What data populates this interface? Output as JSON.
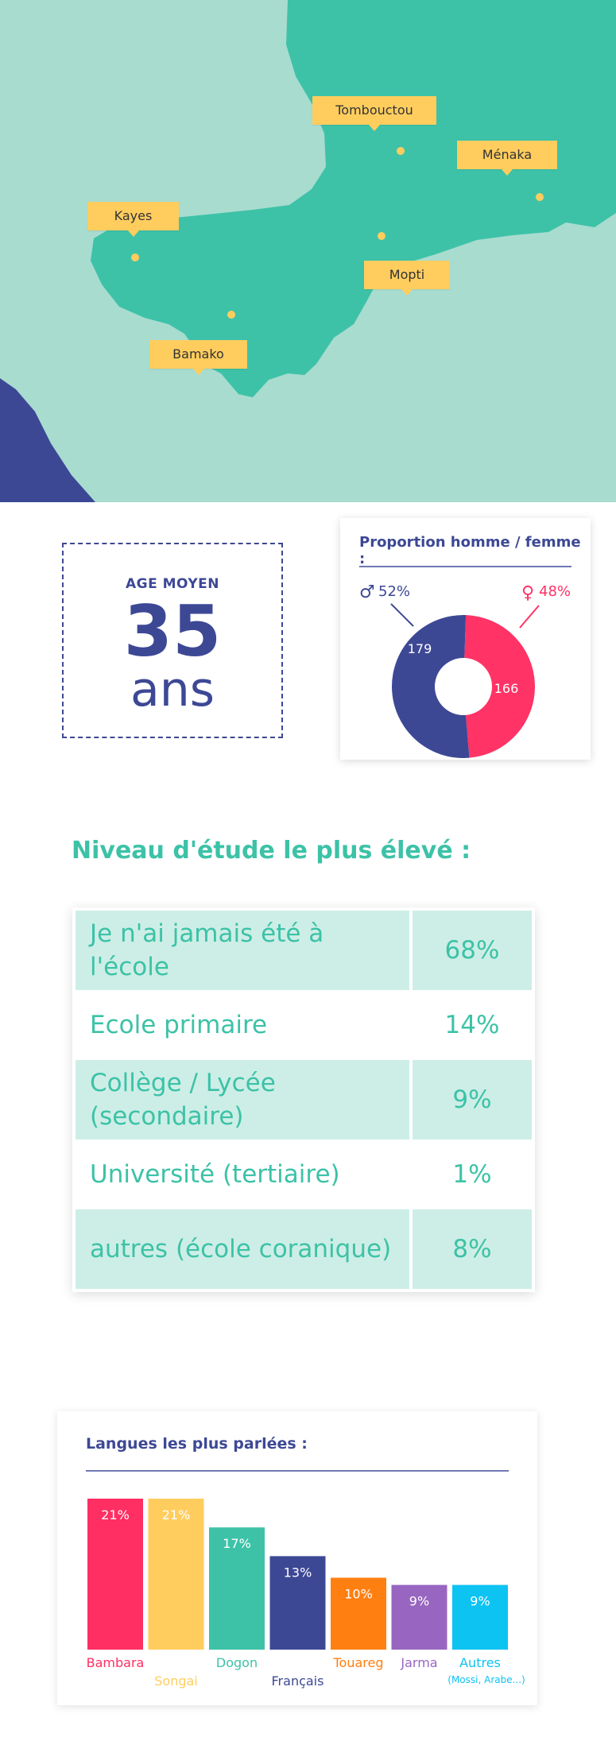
{
  "map": {
    "colors": {
      "water": "#a8dccf",
      "land": "#3dc2a8",
      "coast": "#3d4895",
      "label": "#ffcd5e"
    },
    "cities": [
      {
        "name": "Tombouctou"
      },
      {
        "name": "Ménaka"
      },
      {
        "name": "Kayes"
      },
      {
        "name": "Mopti"
      },
      {
        "name": "Bamako"
      }
    ]
  },
  "age": {
    "caption": "AGE MOYEN",
    "value": "35",
    "unit": "ans"
  },
  "gender": {
    "title": "Proportion homme / femme :",
    "male": {
      "symbol": "♂",
      "percent_label": "52%",
      "count_label": "179",
      "count": 179,
      "color": "#3d4895"
    },
    "female": {
      "symbol": "♀",
      "percent_label": "48%",
      "count_label": "166",
      "count": 166,
      "color": "#ff3366"
    }
  },
  "education": {
    "title": "Niveau d'étude le plus élevé :",
    "rows": [
      {
        "label": "Je n'ai jamais été à l'école",
        "value": "68%"
      },
      {
        "label": "Ecole primaire",
        "value": "14%"
      },
      {
        "label": "Collège / Lycée (secondaire)",
        "value": "9%"
      },
      {
        "label": "Université (tertiaire)",
        "value": "1%"
      },
      {
        "label": "autres (école coranique)",
        "value": "8%"
      }
    ]
  },
  "chart_data": {
    "type": "bar",
    "title": "Langues les plus parlées :",
    "categories": [
      "Bambara",
      "Songai",
      "Dogon",
      "Français",
      "Touareg",
      "Jarma",
      "Autres"
    ],
    "category_notes": [
      "",
      "",
      "",
      "",
      "",
      "",
      "(Mossi, Arabe...)"
    ],
    "values": [
      21,
      21,
      17,
      13,
      10,
      9,
      9
    ],
    "value_labels": [
      "21%",
      "21%",
      "17%",
      "13%",
      "10%",
      "9%",
      "9%"
    ],
    "colors": [
      "#ff2e63",
      "#ffcd5e",
      "#3dc2a8",
      "#3d4895",
      "#ff7f11",
      "#9866c0",
      "#0dc3f2"
    ],
    "xlabel": "",
    "ylabel": "",
    "grid": false
  }
}
